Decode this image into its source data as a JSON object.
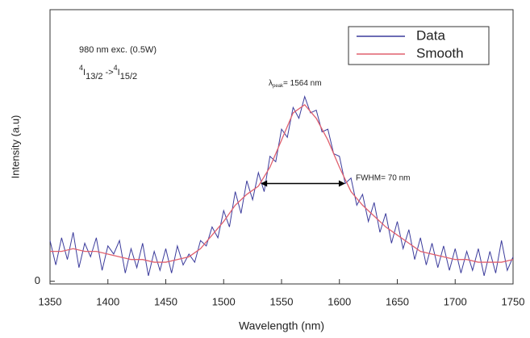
{
  "chart_data": {
    "type": "line",
    "x_label": "Wavelength (nm)",
    "y_label": "Intensity (a.u)",
    "xlim": [
      1350,
      1750
    ],
    "xticks": [
      1350,
      1400,
      1450,
      1500,
      1550,
      1600,
      1650,
      1700,
      1750
    ],
    "ylim": [
      -0.01,
      1
    ],
    "yticks": [
      0
    ],
    "legend": "upper right",
    "series": [
      {
        "name": "Data",
        "color": "#3c3c9c",
        "x": [
          1350,
          1355,
          1360,
          1365,
          1370,
          1375,
          1380,
          1385,
          1390,
          1395,
          1400,
          1405,
          1410,
          1415,
          1420,
          1425,
          1430,
          1435,
          1440,
          1445,
          1450,
          1455,
          1460,
          1465,
          1470,
          1475,
          1480,
          1485,
          1490,
          1495,
          1500,
          1505,
          1510,
          1515,
          1520,
          1525,
          1530,
          1535,
          1540,
          1545,
          1550,
          1555,
          1560,
          1565,
          1570,
          1575,
          1580,
          1585,
          1590,
          1595,
          1600,
          1605,
          1610,
          1615,
          1620,
          1625,
          1630,
          1635,
          1640,
          1645,
          1650,
          1655,
          1660,
          1665,
          1670,
          1675,
          1680,
          1685,
          1690,
          1695,
          1700,
          1705,
          1710,
          1715,
          1720,
          1725,
          1730,
          1735,
          1740,
          1745,
          1750
        ],
        "values": [
          0.15,
          0.06,
          0.16,
          0.08,
          0.18,
          0.05,
          0.14,
          0.09,
          0.16,
          0.04,
          0.13,
          0.1,
          0.15,
          0.03,
          0.12,
          0.05,
          0.14,
          0.02,
          0.11,
          0.04,
          0.12,
          0.03,
          0.13,
          0.06,
          0.1,
          0.07,
          0.15,
          0.13,
          0.2,
          0.16,
          0.26,
          0.2,
          0.33,
          0.25,
          0.37,
          0.3,
          0.4,
          0.33,
          0.46,
          0.44,
          0.56,
          0.53,
          0.64,
          0.6,
          0.68,
          0.62,
          0.63,
          0.55,
          0.56,
          0.47,
          0.46,
          0.36,
          0.38,
          0.28,
          0.32,
          0.22,
          0.29,
          0.18,
          0.25,
          0.14,
          0.22,
          0.12,
          0.19,
          0.08,
          0.16,
          0.06,
          0.14,
          0.05,
          0.13,
          0.04,
          0.12,
          0.03,
          0.11,
          0.04,
          0.12,
          0.02,
          0.11,
          0.03,
          0.15,
          0.04,
          0.09
        ]
      },
      {
        "name": "Smooth",
        "color": "#e0606e",
        "x": [
          1350,
          1360,
          1370,
          1380,
          1390,
          1400,
          1410,
          1420,
          1430,
          1440,
          1450,
          1460,
          1470,
          1480,
          1490,
          1500,
          1510,
          1520,
          1530,
          1540,
          1550,
          1560,
          1570,
          1580,
          1590,
          1600,
          1610,
          1620,
          1630,
          1640,
          1650,
          1660,
          1670,
          1680,
          1690,
          1700,
          1710,
          1720,
          1730,
          1740,
          1750
        ],
        "values": [
          0.11,
          0.11,
          0.12,
          0.11,
          0.11,
          0.1,
          0.09,
          0.08,
          0.08,
          0.07,
          0.07,
          0.08,
          0.09,
          0.12,
          0.17,
          0.22,
          0.28,
          0.32,
          0.35,
          0.42,
          0.52,
          0.62,
          0.65,
          0.6,
          0.52,
          0.42,
          0.33,
          0.28,
          0.24,
          0.2,
          0.17,
          0.14,
          0.11,
          0.1,
          0.09,
          0.08,
          0.08,
          0.07,
          0.07,
          0.07,
          0.08
        ]
      }
    ],
    "annotations": {
      "excitation": "980 nm exc. (0.5W)",
      "transition": [
        "4",
        "I",
        "13/2",
        " ->",
        "4",
        "I",
        "15/2"
      ],
      "peak": [
        "λ",
        "peak",
        "= 1564 nm"
      ],
      "fwhm": "FWHM= 70 nm",
      "fwhm_arrow": {
        "x": [
          1532,
          1605
        ],
        "y": 0.36
      }
    }
  }
}
